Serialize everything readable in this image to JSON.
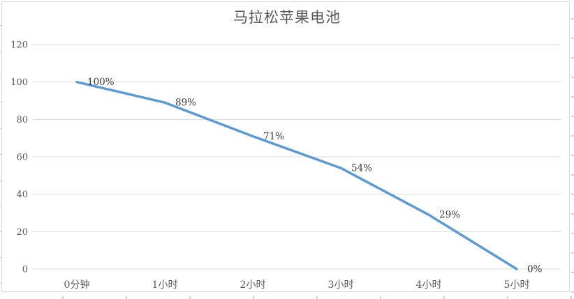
{
  "chart": {
    "title": "马拉松苹果电池",
    "colors": {
      "line": "#5B9BD5",
      "gridline": "#D9D9D9",
      "chart_border": "#D9D9D9",
      "axis_label": "#595959",
      "title": "#595959",
      "data_label": "#3B3B3B"
    }
  },
  "chart_data": {
    "type": "line",
    "title": "马拉松苹果电池",
    "categories": [
      "0分钟",
      "1小时",
      "2小时",
      "3小时",
      "4小时",
      "5小时"
    ],
    "values": [
      100,
      89,
      71,
      54,
      29,
      0
    ],
    "data_labels": [
      "100%",
      "89%",
      "71%",
      "54%",
      "29%",
      "0%"
    ],
    "xlabel": "",
    "ylabel": "",
    "ylim": [
      0,
      120
    ],
    "yticks": [
      0,
      20,
      40,
      60,
      80,
      100,
      120
    ],
    "grid": "horizontal",
    "legend": "none",
    "data_label_position": "right",
    "line_color": "#5B9BD5"
  }
}
